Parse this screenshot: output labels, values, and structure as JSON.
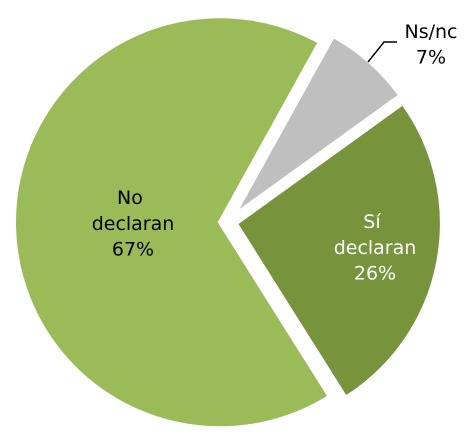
{
  "chart_data": {
    "type": "pie",
    "categories": [
      "Ns/nc",
      "Sí declaran",
      "No declaran"
    ],
    "values": [
      7,
      26,
      67
    ],
    "value_labels": [
      "7%",
      "26%",
      "67%"
    ],
    "colors": [
      "#bfbfbf",
      "#77933c",
      "#9bbb59"
    ]
  }
}
